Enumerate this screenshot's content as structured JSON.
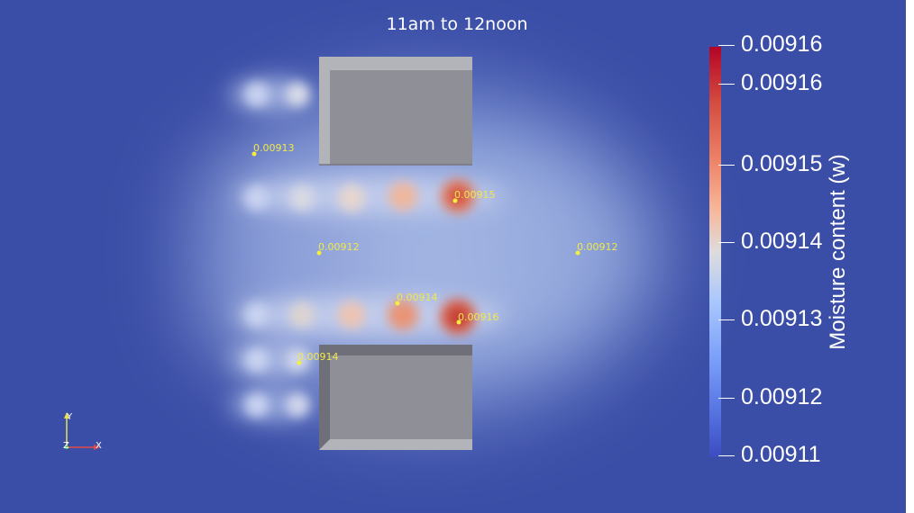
{
  "title": "11am to 12noon",
  "colors": {
    "background": "#3b4ea7",
    "colormap": [
      "#3b4cc0",
      "#dddcdc",
      "#b40426"
    ],
    "probe": "#f5ee3a",
    "block": "#8e8e98"
  },
  "colorbar": {
    "title": "Moisture content (w)",
    "ticks": [
      "0.00916",
      "0.00916",
      "0.00915",
      "0.00914",
      "0.00913",
      "0.00912",
      "0.00911"
    ]
  },
  "probes": [
    {
      "label": "0.00913"
    },
    {
      "label": "0.00915"
    },
    {
      "label": "0.00912"
    },
    {
      "label": "0.00912"
    },
    {
      "label": "0.00914"
    },
    {
      "label": "0.00916"
    },
    {
      "label": "0.00914"
    }
  ],
  "orientation_axes": {
    "y": "Y",
    "z": "Z",
    "x": "X"
  }
}
